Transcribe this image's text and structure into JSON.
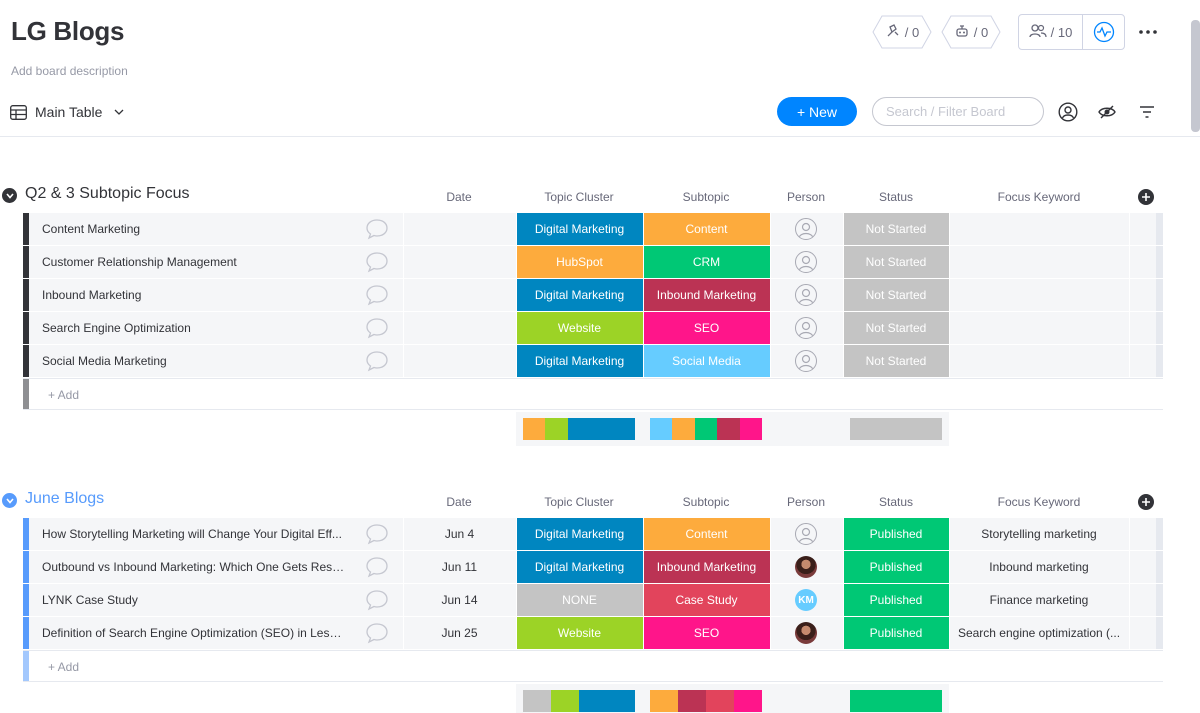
{
  "board": {
    "title": "LG Blogs",
    "description": "Add board description",
    "automations_count": "/ 0",
    "integrations_count": "/ 0",
    "members_count": "/ 10",
    "view_name": "Main Table",
    "new_button": "+ New",
    "search_placeholder": "Search / Filter Board"
  },
  "columns": {
    "date": "Date",
    "topic": "Topic Cluster",
    "subtopic": "Subtopic",
    "person": "Person",
    "status": "Status",
    "keyword": "Focus Keyword"
  },
  "add_row_label": "+ Add",
  "groups": [
    {
      "title": "Q2 & 3 Subtopic Focus",
      "color": "#323338",
      "rows": [
        {
          "name": "Content Marketing",
          "date": "",
          "topic": "Digital Marketing",
          "topic_color": "#0086c0",
          "subtopic": "Content",
          "subtopic_color": "#fdab3d",
          "person": "empty",
          "status": "Not Started",
          "status_color": "#c4c4c4",
          "keyword": ""
        },
        {
          "name": "Customer Relationship Management",
          "date": "",
          "topic": "HubSpot",
          "topic_color": "#fdab3d",
          "subtopic": "CRM",
          "subtopic_color": "#00c875",
          "person": "empty",
          "status": "Not Started",
          "status_color": "#c4c4c4",
          "keyword": ""
        },
        {
          "name": "Inbound Marketing",
          "date": "",
          "topic": "Digital Marketing",
          "topic_color": "#0086c0",
          "subtopic": "Inbound Marketing",
          "subtopic_color": "#bb3354",
          "person": "empty",
          "status": "Not Started",
          "status_color": "#c4c4c4",
          "keyword": ""
        },
        {
          "name": "Search Engine Optimization",
          "date": "",
          "topic": "Website",
          "topic_color": "#9cd326",
          "subtopic": "SEO",
          "subtopic_color": "#ff158a",
          "person": "empty",
          "status": "Not Started",
          "status_color": "#c4c4c4",
          "keyword": ""
        },
        {
          "name": "Social Media Marketing",
          "date": "",
          "topic": "Digital Marketing",
          "topic_color": "#0086c0",
          "subtopic": "Social Media",
          "subtopic_color": "#66ccff",
          "person": "empty",
          "status": "Not Started",
          "status_color": "#c4c4c4",
          "keyword": ""
        }
      ],
      "summary": {
        "topic": [
          {
            "color": "#fdab3d",
            "share": 1
          },
          {
            "color": "#9cd326",
            "share": 1
          },
          {
            "color": "#0086c0",
            "share": 3
          }
        ],
        "subtopic": [
          {
            "color": "#66ccff",
            "share": 1
          },
          {
            "color": "#fdab3d",
            "share": 1
          },
          {
            "color": "#00c875",
            "share": 1
          },
          {
            "color": "#bb3354",
            "share": 1
          },
          {
            "color": "#ff158a",
            "share": 1
          }
        ],
        "status": [
          {
            "color": "#c4c4c4",
            "share": 5
          }
        ]
      }
    },
    {
      "title": "June Blogs",
      "color": "#579bfc",
      "rows": [
        {
          "name": "How Storytelling Marketing will Change Your Digital Eff...",
          "date": "Jun 4",
          "topic": "Digital Marketing",
          "topic_color": "#0086c0",
          "subtopic": "Content",
          "subtopic_color": "#fdab3d",
          "person": "empty",
          "status": "Published",
          "status_color": "#00c875",
          "keyword": "Storytelling marketing"
        },
        {
          "name": "Outbound vs Inbound Marketing: Which One Gets Resu...",
          "date": "Jun 11",
          "topic": "Digital Marketing",
          "topic_color": "#0086c0",
          "subtopic": "Inbound Marketing",
          "subtopic_color": "#bb3354",
          "person": "photo",
          "status": "Published",
          "status_color": "#00c875",
          "keyword": "Inbound marketing"
        },
        {
          "name": "LYNK Case Study",
          "date": "Jun 14",
          "topic": "NONE",
          "topic_color": "#c4c4c4",
          "subtopic": "Case Study",
          "subtopic_color": "#e2445c",
          "person": "KM",
          "status": "Published",
          "status_color": "#00c875",
          "keyword": "Finance marketing"
        },
        {
          "name": "Definition of Search Engine Optimization (SEO) in Less t...",
          "date": "Jun 25",
          "topic": "Website",
          "topic_color": "#9cd326",
          "subtopic": "SEO",
          "subtopic_color": "#ff158a",
          "person": "photo",
          "status": "Published",
          "status_color": "#00c875",
          "keyword": "Search engine optimization (..."
        }
      ],
      "summary": {
        "topic": [
          {
            "color": "#c4c4c4",
            "share": 1
          },
          {
            "color": "#9cd326",
            "share": 1
          },
          {
            "color": "#0086c0",
            "share": 2
          }
        ],
        "subtopic": [
          {
            "color": "#fdab3d",
            "share": 1
          },
          {
            "color": "#bb3354",
            "share": 1
          },
          {
            "color": "#e2445c",
            "share": 1
          },
          {
            "color": "#ff158a",
            "share": 1
          }
        ],
        "status": [
          {
            "color": "#00c875",
            "share": 4
          }
        ]
      }
    }
  ],
  "icons": {
    "automations": "robot-arm-icon",
    "integrations": "plug-icon",
    "members": "people-icon",
    "activity": "activity-pulse-icon",
    "more": "more-dots-icon",
    "view": "table-icon",
    "person_filter": "person-circle-icon",
    "hide": "eye-hidden-icon",
    "filter": "filter-icon"
  }
}
